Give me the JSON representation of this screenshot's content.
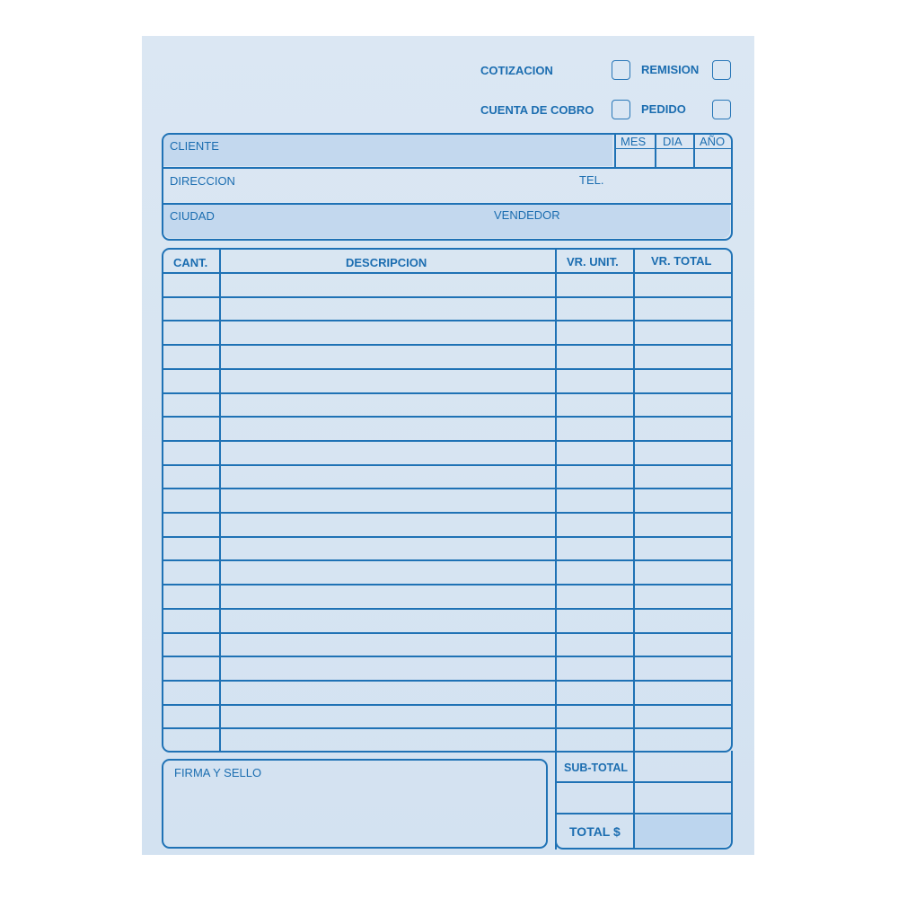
{
  "doc_type_options": [
    {
      "label": "COTIZACION",
      "checked": false
    },
    {
      "label": "REMISION",
      "checked": false
    },
    {
      "label": "CUENTA DE COBRO",
      "checked": false
    },
    {
      "label": "PEDIDO",
      "checked": false
    }
  ],
  "header": {
    "cliente": "CLIENTE",
    "mes": "MES",
    "dia": "DIA",
    "ano": "AÑO",
    "direccion": "DIRECCION",
    "tel": "TEL.",
    "ciudad": "CIUDAD",
    "vendedor": "VENDEDOR"
  },
  "table": {
    "columns": [
      "CANT.",
      "DESCRIPCION",
      "VR. UNIT.",
      "VR. TOTAL"
    ]
  },
  "footer": {
    "firma": "FIRMA Y SELLO",
    "subtotal": "SUB-TOTAL",
    "total": "TOTAL $"
  },
  "colors": {
    "ink": "#1f72b5",
    "paper": "#d8e5f2"
  }
}
